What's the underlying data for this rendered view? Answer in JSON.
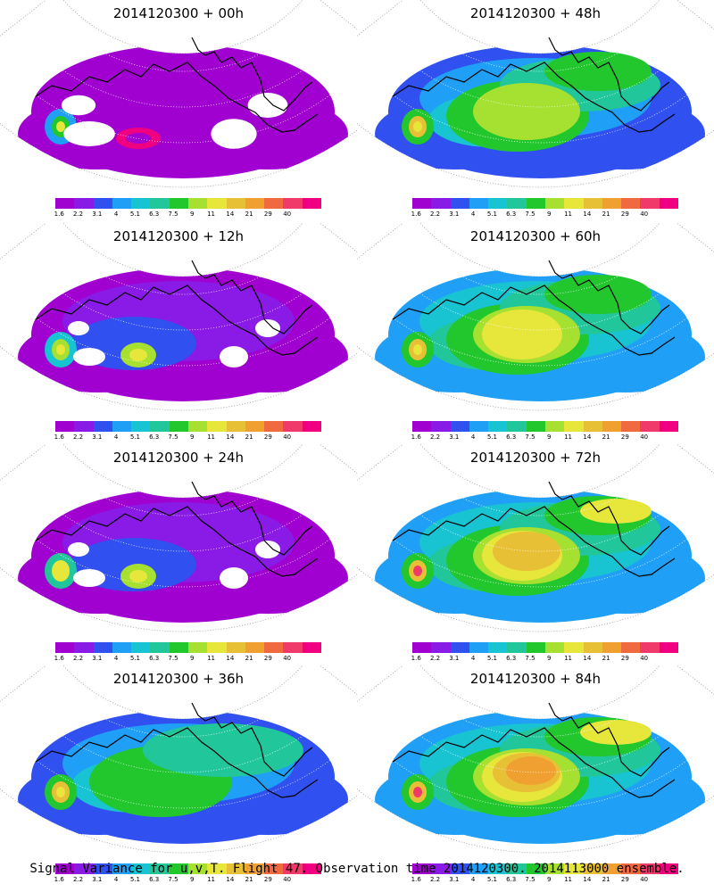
{
  "panels": [
    {
      "title": "2014120300 + 00h",
      "level": 0
    },
    {
      "title": "2014120300 + 48h",
      "level": 4
    },
    {
      "title": "2014120300 + 12h",
      "level": 1
    },
    {
      "title": "2014120300 + 60h",
      "level": 5
    },
    {
      "title": "2014120300 + 24h",
      "level": 2
    },
    {
      "title": "2014120300 + 72h",
      "level": 6
    },
    {
      "title": "2014120300 + 36h",
      "level": 3
    },
    {
      "title": "2014120300 + 84h",
      "level": 7
    }
  ],
  "colorbar": {
    "labels": [
      "1.6",
      "2.2",
      "3.1",
      "4",
      "5.1",
      "6.3",
      "7.5",
      "9",
      "11",
      "14",
      "21",
      "29",
      "40"
    ],
    "colors": [
      "#a000d0",
      "#8a1ae6",
      "#3050f0",
      "#1f9ff5",
      "#18c3d2",
      "#21c79a",
      "#22c72e",
      "#a6e030",
      "#e6e63b",
      "#e8c036",
      "#f0a030",
      "#f06a40",
      "#f03a6a",
      "#f00080"
    ]
  },
  "footer": "Signal Variance for u,v,T. Flight 47. Observation time 2014120300. 2014113000 ensemble."
}
